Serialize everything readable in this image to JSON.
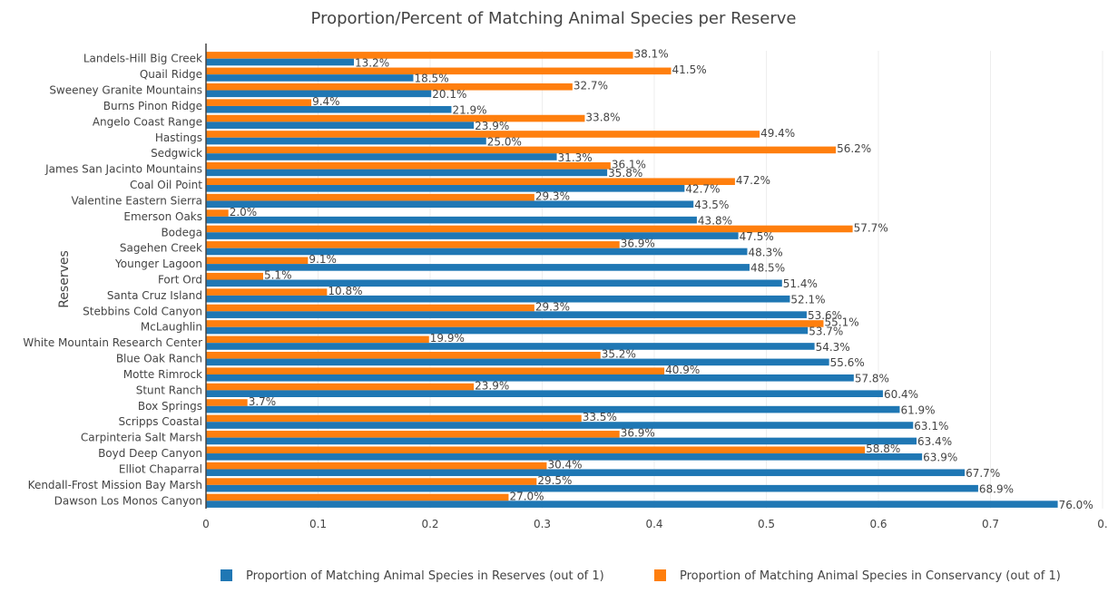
{
  "chart_data": {
    "type": "bar",
    "orientation": "horizontal",
    "title": "Proportion/Percent of Matching Animal Species per Reserve",
    "ylabel": "Reserves",
    "xlabel": "",
    "xlim": [
      0,
      0.8
    ],
    "x_ticks": [
      "0",
      "0.1",
      "0.2",
      "0.3",
      "0.4",
      "0.5",
      "0.6",
      "0.7",
      "0."
    ],
    "grid": true,
    "legend_position": "bottom",
    "categories": [
      "Landels-Hill Big Creek",
      "Quail Ridge",
      "Sweeney Granite Mountains",
      "Burns Pinon Ridge",
      "Angelo Coast Range",
      "Hastings",
      "Sedgwick",
      "James San Jacinto Mountains",
      "Coal Oil Point",
      "Valentine Eastern Sierra",
      "Emerson Oaks",
      "Bodega",
      "Sagehen Creek",
      "Younger Lagoon",
      "Fort Ord",
      "Santa Cruz Island",
      "Stebbins Cold Canyon",
      "McLaughlin",
      "White Mountain Research Center",
      "Blue Oak Ranch",
      "Motte Rimrock",
      "Stunt Ranch",
      "Box Springs",
      "Scripps Coastal",
      "Carpinteria Salt Marsh",
      "Boyd Deep Canyon",
      "Elliot Chaparral",
      "Kendall-Frost Mission Bay Marsh",
      "Dawson Los Monos Canyon"
    ],
    "series": [
      {
        "name": "Proportion of Matching Animal Species in Reserves (out of 1)",
        "color": "#1f77b4",
        "values": [
          0.132,
          0.185,
          0.201,
          0.219,
          0.239,
          0.25,
          0.313,
          0.358,
          0.427,
          0.435,
          0.438,
          0.475,
          0.483,
          0.485,
          0.514,
          0.521,
          0.536,
          0.537,
          0.543,
          0.556,
          0.578,
          0.604,
          0.619,
          0.631,
          0.634,
          0.639,
          0.677,
          0.689,
          0.76
        ],
        "labels": [
          "13.2%",
          "18.5%",
          "20.1%",
          "21.9%",
          "23.9%",
          "25.0%",
          "31.3%",
          "35.8%",
          "42.7%",
          "43.5%",
          "43.8%",
          "47.5%",
          "48.3%",
          "48.5%",
          "51.4%",
          "52.1%",
          "53.6%",
          "53.7%",
          "54.3%",
          "55.6%",
          "57.8%",
          "60.4%",
          "61.9%",
          "63.1%",
          "63.4%",
          "63.9%",
          "67.7%",
          "68.9%",
          "76.0%"
        ]
      },
      {
        "name": "Proportion of Matching Animal Species in Conservancy (out of 1)",
        "color": "#ff7f0e",
        "values": [
          0.381,
          0.415,
          0.327,
          0.094,
          0.338,
          0.494,
          0.562,
          0.361,
          0.472,
          0.293,
          0.02,
          0.577,
          0.369,
          0.091,
          0.051,
          0.108,
          0.293,
          0.551,
          0.199,
          0.352,
          0.409,
          0.239,
          0.037,
          0.335,
          0.369,
          0.588,
          0.304,
          0.295,
          0.27
        ],
        "labels": [
          "38.1%",
          "41.5%",
          "32.7%",
          "9.4%",
          "33.8%",
          "49.4%",
          "56.2%",
          "36.1%",
          "47.2%",
          "29.3%",
          "2.0%",
          "57.7%",
          "36.9%",
          "9.1%",
          "5.1%",
          "10.8%",
          "29.3%",
          "55.1%",
          "19.9%",
          "35.2%",
          "40.9%",
          "23.9%",
          "3.7%",
          "33.5%",
          "36.9%",
          "58.8%",
          "30.4%",
          "29.5%",
          "27.0%"
        ]
      }
    ]
  }
}
